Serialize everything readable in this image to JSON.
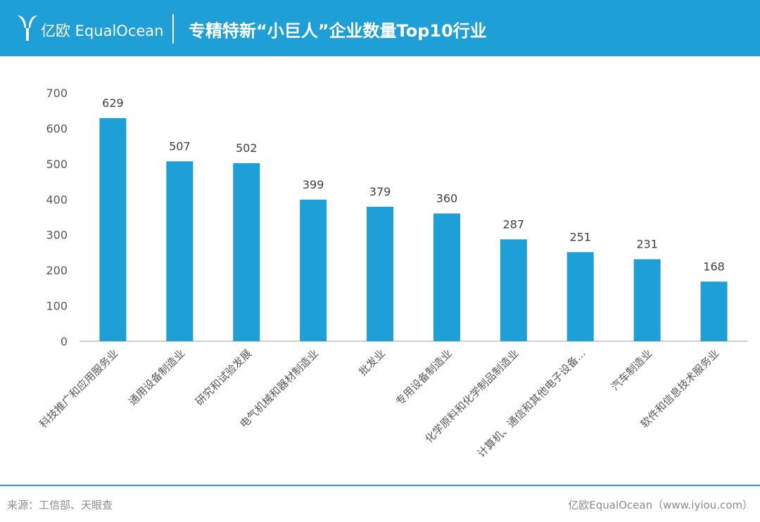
{
  "header": {
    "logo_text": "亿欧 EqualOcean",
    "title": "专精特新“小巨人”企业数量Top10行业"
  },
  "colors": {
    "brand": "#1e9fd6",
    "bar": "#1e9fd6"
  },
  "chart_data": {
    "type": "bar",
    "title": "",
    "xlabel": "",
    "ylabel": "",
    "ylim": [
      0,
      700
    ],
    "yticks": [
      0,
      100,
      200,
      300,
      400,
      500,
      600,
      700
    ],
    "grid": false,
    "categories": [
      "科技推广和应用服务业",
      "通用设备制造业",
      "研究和试验发展",
      "电气机械和器材制造业",
      "批发业",
      "专用设备制造业",
      "化学原料和化学制品制造业",
      "计算机、通信和其他电子设备...",
      "汽车制造业",
      "软件和信息技术服务业"
    ],
    "values": [
      629,
      507,
      502,
      399,
      379,
      360,
      287,
      251,
      231,
      168
    ]
  },
  "footer": {
    "source": "来源：工信部、天眼查",
    "credit": "亿欧EqualOcean（www.iyiou.com）"
  }
}
